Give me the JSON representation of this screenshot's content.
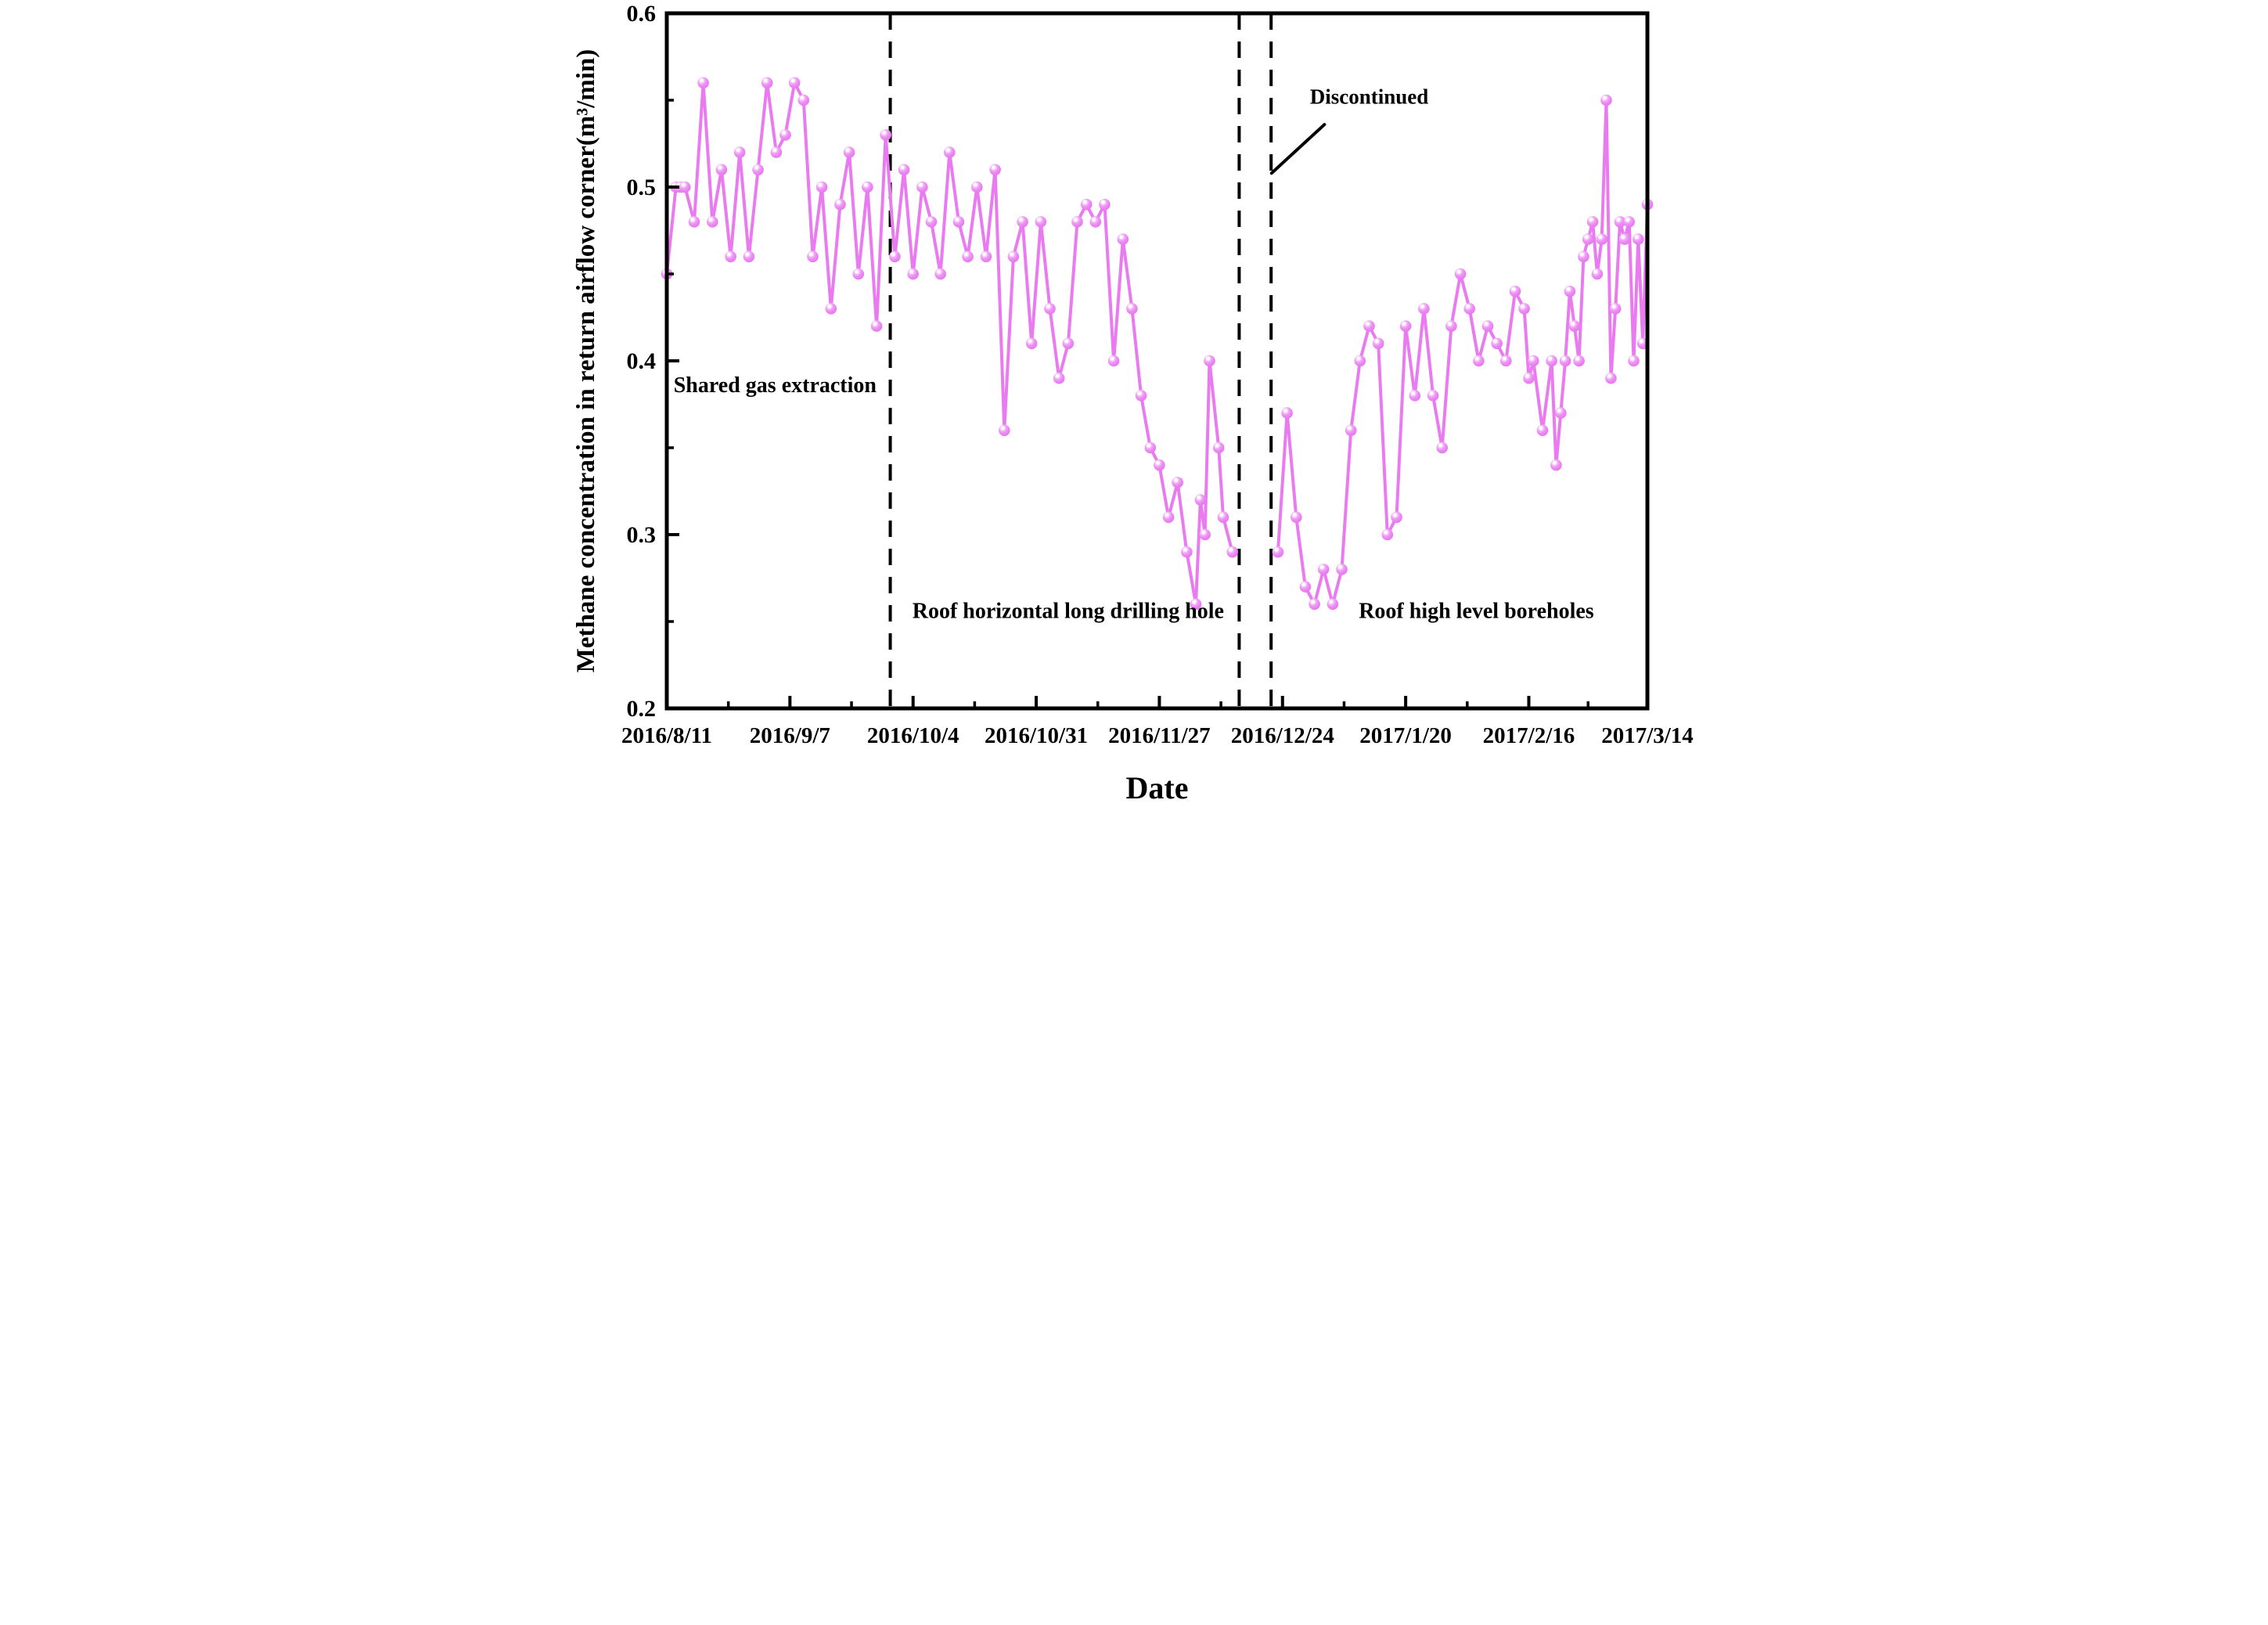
{
  "chart_data": {
    "type": "line",
    "title": "",
    "xlabel": "Date",
    "ylabel": "Methane concentration in return airflow corner(m³/min)",
    "legend": "none",
    "grid": false,
    "xlim_days": [
      0,
      215
    ],
    "ylim": [
      0.2,
      0.6
    ],
    "y_major_ticks": [
      0.2,
      0.3,
      0.4,
      0.5,
      0.6
    ],
    "y_major_tick_labels": [
      "0.2",
      "0.3",
      "0.4",
      "0.5",
      "0.6"
    ],
    "y_minor_ticks": [
      0.25,
      0.35,
      0.45,
      0.55
    ],
    "x_major_tick_days": [
      0,
      27,
      54,
      81,
      108,
      135,
      162,
      189,
      215
    ],
    "x_major_tick_labels": [
      "2016/8/11",
      "2016/9/7",
      "2016/10/4",
      "2016/10/31",
      "2016/11/27",
      "2016/12/24",
      "2017/1/20",
      "2017/2/16",
      "2017/3/14"
    ],
    "x_minor_tick_days": [
      13.5,
      40.5,
      67.5,
      94.5,
      121.5,
      148.5,
      175.5,
      202
    ],
    "dashed_vlines_days": [
      49,
      125.5,
      132.5
    ],
    "series": [
      {
        "name": "Methane concentration",
        "marker": "sphere",
        "color": "#e97af0",
        "segments": [
          {
            "days": [
              0,
              2,
              3,
              4,
              6,
              8,
              10,
              12,
              14,
              16,
              18,
              20,
              22,
              24,
              26,
              28,
              30,
              32,
              34,
              36,
              38,
              40,
              42,
              44,
              46,
              48,
              50,
              52,
              54,
              56,
              58,
              60,
              62,
              64,
              66,
              68,
              70,
              72,
              74,
              76,
              78,
              80,
              82,
              84,
              86,
              88,
              90,
              92,
              94,
              96,
              98,
              100,
              102,
              104,
              106,
              108,
              110,
              112,
              114,
              116,
              117,
              118,
              119,
              121,
              122,
              124
            ],
            "values": [
              0.45,
              0.5,
              0.5,
              0.5,
              0.48,
              0.56,
              0.48,
              0.51,
              0.46,
              0.52,
              0.46,
              0.51,
              0.56,
              0.52,
              0.53,
              0.56,
              0.55,
              0.46,
              0.5,
              0.43,
              0.49,
              0.52,
              0.45,
              0.5,
              0.42,
              0.53,
              0.46,
              0.51,
              0.45,
              0.5,
              0.48,
              0.45,
              0.52,
              0.48,
              0.46,
              0.5,
              0.46,
              0.51,
              0.36,
              0.46,
              0.48,
              0.41,
              0.48,
              0.43,
              0.39,
              0.41,
              0.48,
              0.49,
              0.48,
              0.49,
              0.4,
              0.47,
              0.43,
              0.38,
              0.35,
              0.34,
              0.31,
              0.33,
              0.29,
              0.26,
              0.32,
              0.3,
              0.4,
              0.35,
              0.31,
              0.29
            ]
          },
          {
            "days": [
              134,
              136,
              138,
              140,
              142,
              144,
              146,
              148,
              150,
              152,
              154,
              156,
              158,
              160,
              162,
              164,
              166,
              168,
              170,
              172,
              174,
              176,
              178,
              180,
              182,
              184,
              186,
              188,
              189,
              190,
              192,
              194,
              195,
              196,
              197,
              198,
              199,
              200,
              201,
              202,
              203,
              204,
              205,
              206,
              207,
              208,
              209,
              210,
              211,
              212,
              213,
              214,
              215
            ],
            "values": [
              0.29,
              0.37,
              0.31,
              0.27,
              0.26,
              0.28,
              0.26,
              0.28,
              0.36,
              0.4,
              0.42,
              0.41,
              0.3,
              0.31,
              0.42,
              0.38,
              0.43,
              0.38,
              0.35,
              0.42,
              0.45,
              0.43,
              0.4,
              0.42,
              0.41,
              0.4,
              0.44,
              0.43,
              0.39,
              0.4,
              0.36,
              0.4,
              0.34,
              0.37,
              0.4,
              0.44,
              0.42,
              0.4,
              0.46,
              0.47,
              0.48,
              0.45,
              0.47,
              0.55,
              0.39,
              0.43,
              0.48,
              0.47,
              0.48,
              0.4,
              0.47,
              0.41,
              0.49
            ]
          }
        ]
      }
    ],
    "region_labels": [
      {
        "text": "Shared gas extraction",
        "anchor": "start",
        "x_day": 1.5,
        "value": 0.382
      },
      {
        "text": "Roof horizontal long drilling hole",
        "anchor": "middle",
        "x_day": 88,
        "value": 0.252
      },
      {
        "text": "Roof high level boreholes",
        "anchor": "middle",
        "x_day": 177.5,
        "value": 0.252
      }
    ],
    "annotation": {
      "text": "Discontinued",
      "text_x_day": 154,
      "text_value": 0.548,
      "line_from_day": 132.6,
      "line_from_value": 0.508,
      "line_to_day": 144.2,
      "line_to_value": 0.536
    },
    "colors": {
      "marker_body": "#e97af0",
      "marker_mid": "#f3b3f8",
      "marker_highlight": "#ffffff",
      "line": "#e97af0",
      "axis": "#000000",
      "dashed_line": "#000000",
      "text": "#000000",
      "background": "#ffffff"
    }
  }
}
